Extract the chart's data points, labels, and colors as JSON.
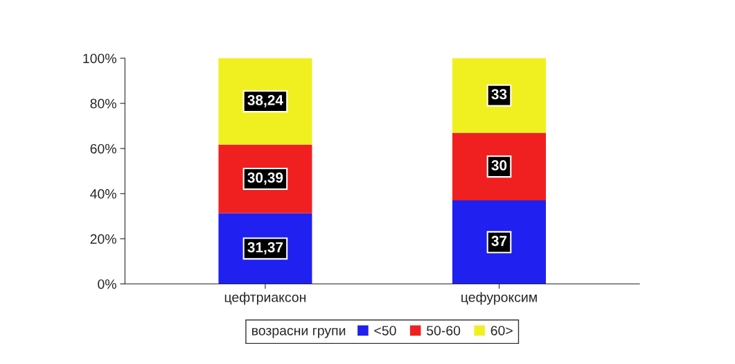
{
  "chart_data": {
    "type": "bar",
    "stacked": true,
    "categories": [
      "цефтриаксон",
      "цефуроксим"
    ],
    "series": [
      {
        "name": "<50",
        "color": "#2020f0",
        "values": [
          31.37,
          37
        ],
        "value_labels": [
          "31,37",
          "37"
        ]
      },
      {
        "name": "50-60",
        "color": "#f02020",
        "values": [
          30.39,
          30
        ],
        "value_labels": [
          "30,39",
          "30"
        ]
      },
      {
        "name": "60>",
        "color": "#f0f020",
        "values": [
          38.24,
          33
        ],
        "value_labels": [
          "38,24",
          "33"
        ]
      }
    ],
    "legend_title": "возрасни групи",
    "legend": "bottom",
    "grid": false,
    "ylim": [
      0,
      100
    ],
    "yticks": [
      {
        "value": 0,
        "label": "0%"
      },
      {
        "value": 20,
        "label": "20%"
      },
      {
        "value": 40,
        "label": "40%"
      },
      {
        "value": 60,
        "label": "60%"
      },
      {
        "value": 80,
        "label": "80%"
      },
      {
        "value": 100,
        "label": "100%"
      }
    ]
  }
}
